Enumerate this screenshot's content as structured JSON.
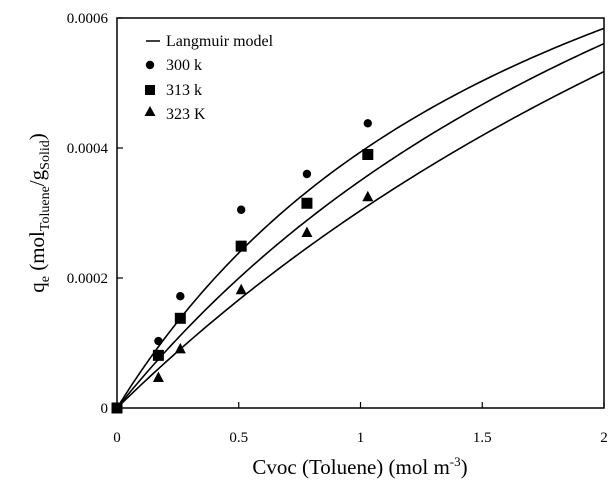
{
  "chart_data": {
    "type": "scatter",
    "xlabel": "Cvoc (Toluene) (mol m-3)",
    "xlabel_parts": {
      "main": "Cvoc (Toluene) (mol m",
      "sup": "-3",
      "end": ")"
    },
    "ylabel": "qe (molToluene/gSolid)",
    "ylabel_parts": {
      "q": "q",
      "sub1": "e",
      "open": " (mol",
      "sub2": "Toluene",
      "slash": "/g",
      "sub3": "Solid",
      "close": ")"
    },
    "xlim": [
      0,
      2
    ],
    "ylim": [
      0,
      0.0006
    ],
    "x_ticks": [
      "0",
      "0.5",
      "1",
      "1.5",
      "2"
    ],
    "y_ticks": [
      "0",
      "0.0002",
      "0.0004",
      "0.0006"
    ],
    "grid": false,
    "legend_position": "top-left",
    "legend": {
      "model": "Langmuir model",
      "items": [
        "300 k",
        "313 k",
        "323 K"
      ]
    },
    "series": [
      {
        "name": "300 k",
        "marker": "circle",
        "x": [
          0,
          0.17,
          0.26,
          0.51,
          0.78,
          1.03
        ],
        "y": [
          0,
          0.000103,
          0.000172,
          0.000305,
          0.00036,
          0.000438
        ]
      },
      {
        "name": "313 k",
        "marker": "square",
        "x": [
          0,
          0.17,
          0.26,
          0.51,
          0.78,
          1.03
        ],
        "y": [
          0,
          8.1e-05,
          0.000138,
          0.000249,
          0.000315,
          0.00039
        ]
      },
      {
        "name": "323 K",
        "marker": "triangle",
        "x": [
          0,
          0.17,
          0.26,
          0.51,
          0.78,
          1.03
        ],
        "y": [
          0,
          4.7e-05,
          9.1e-05,
          0.000182,
          0.00027,
          0.000325
        ]
      }
    ],
    "model_curves": [
      {
        "series": "300 k",
        "qm": 0.00113,
        "b": 0.535
      },
      {
        "series": "313 k",
        "qm": 0.00141,
        "b": 0.33
      },
      {
        "series": "323 K",
        "qm": 0.00175,
        "b": 0.21
      }
    ],
    "colors": {
      "marker": "#000000",
      "line": "#000000",
      "background": "#ffffff"
    }
  }
}
